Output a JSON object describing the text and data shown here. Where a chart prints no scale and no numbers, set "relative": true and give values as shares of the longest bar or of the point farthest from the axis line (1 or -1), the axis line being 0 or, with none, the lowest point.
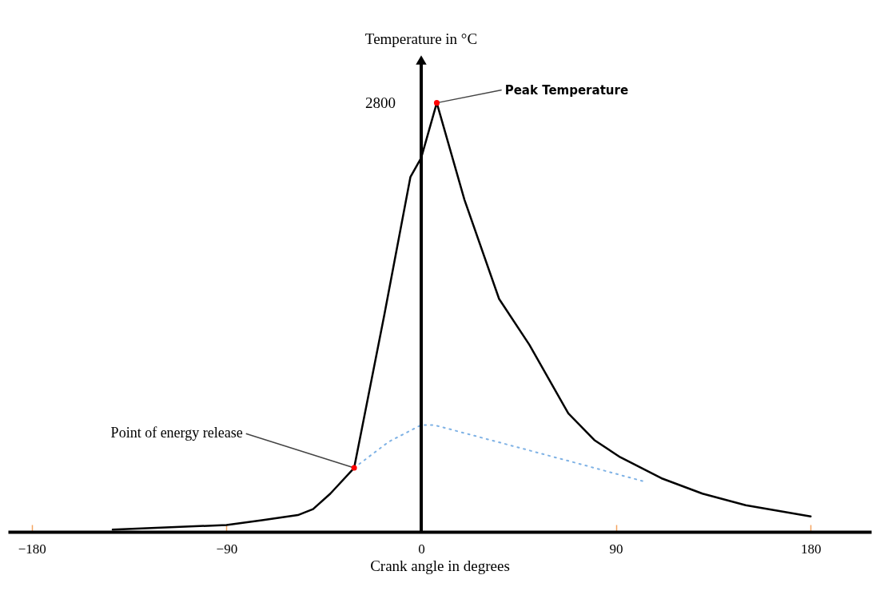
{
  "chart_data": {
    "type": "line",
    "relative": true,
    "xlabel": "Crank angle in degrees",
    "ylabel": "Temperature in °C",
    "xlim": [
      -191,
      208
    ],
    "xticks": [
      -180,
      -90,
      0,
      90,
      180
    ],
    "marker": "none",
    "series": [
      {
        "color": "#000000",
        "line_style": "solid",
        "x": [
          -142.6,
          -90,
          -73.6,
          -57,
          -50,
          -42,
          -31,
          -17,
          -5,
          0,
          7.2,
          20,
          36,
          50,
          68,
          80,
          92,
          111,
          130,
          150,
          180
        ],
        "values": [
          0.005,
          0.016,
          0.027,
          0.039,
          0.053,
          0.089,
          0.149,
          0.507,
          0.827,
          0.872,
          1.0,
          0.774,
          0.543,
          0.436,
          0.276,
          0.214,
          0.174,
          0.125,
          0.089,
          0.062,
          0.036
        ]
      },
      {
        "color": "#7fb2e5",
        "line_style": "dotted",
        "x": [
          -31,
          -15,
          0,
          6,
          32,
          72,
          104
        ],
        "values": [
          0.149,
          0.21,
          0.249,
          0.249,
          0.214,
          0.16,
          0.116
        ]
      }
    ],
    "annotations": [
      {
        "text": "Peak Temperature",
        "x": 7.2,
        "y": 1.0
      },
      {
        "text": "Point of energy release",
        "x": -31,
        "y": 0.149
      },
      "2800"
    ]
  }
}
